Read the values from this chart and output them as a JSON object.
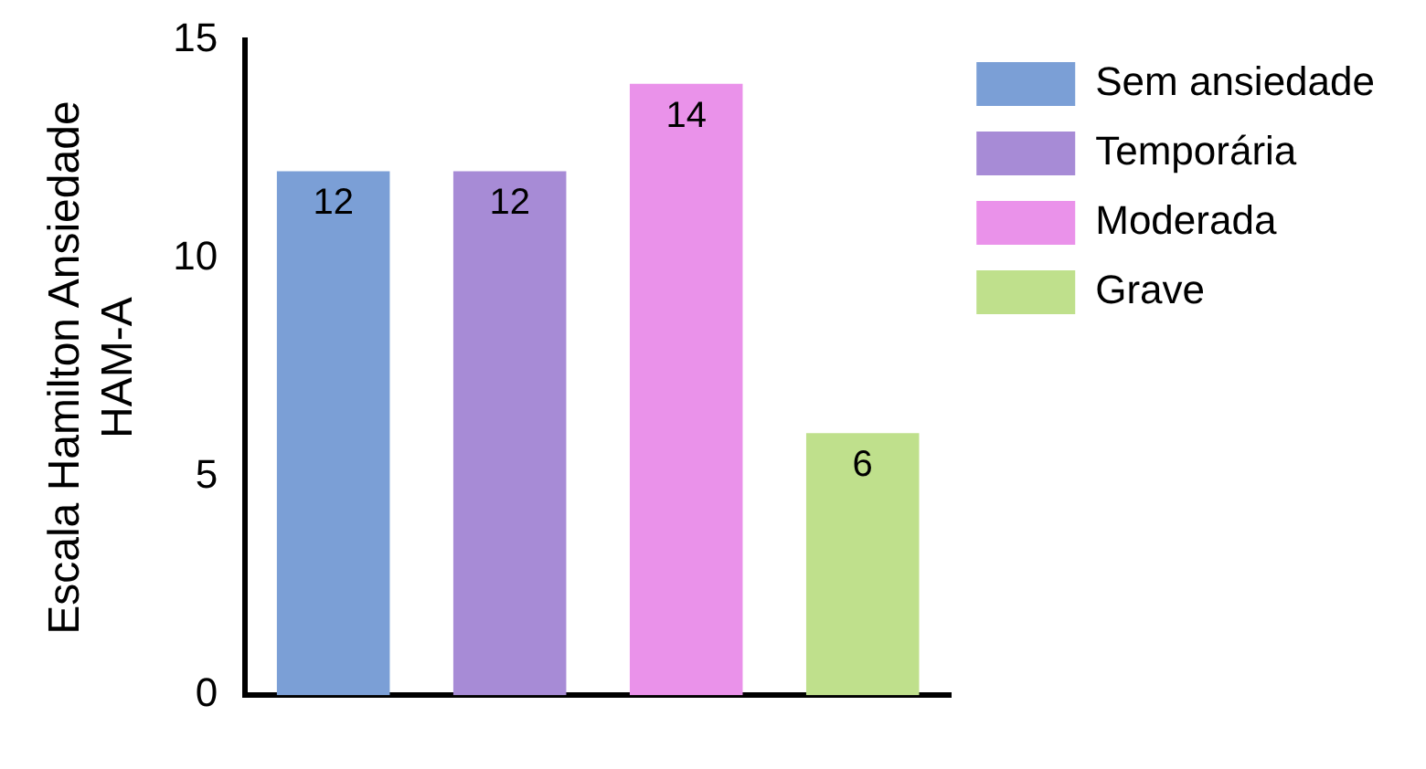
{
  "chart_data": {
    "type": "bar",
    "ylabel": "Escala Hamilton Ansiedade HAM-A",
    "categories": [
      null,
      null,
      null,
      null
    ],
    "series": [
      {
        "name": "Sem ansiedade",
        "color": "#7b9fd6",
        "values": [
          12,
          null,
          null,
          null
        ]
      },
      {
        "name": "Temporária",
        "color": "#a78bd6",
        "values": [
          null,
          12,
          null,
          null
        ]
      },
      {
        "name": "Moderada",
        "color": "#ea92ea",
        "values": [
          null,
          null,
          14,
          null
        ]
      },
      {
        "name": "Grave",
        "color": "#bfe08c",
        "values": [
          null,
          null,
          null,
          6
        ]
      }
    ],
    "ylim": [
      0,
      15
    ],
    "yticks": [
      0,
      5,
      10,
      15
    ],
    "data_labels": true,
    "legend": "top right",
    "grid": false
  }
}
